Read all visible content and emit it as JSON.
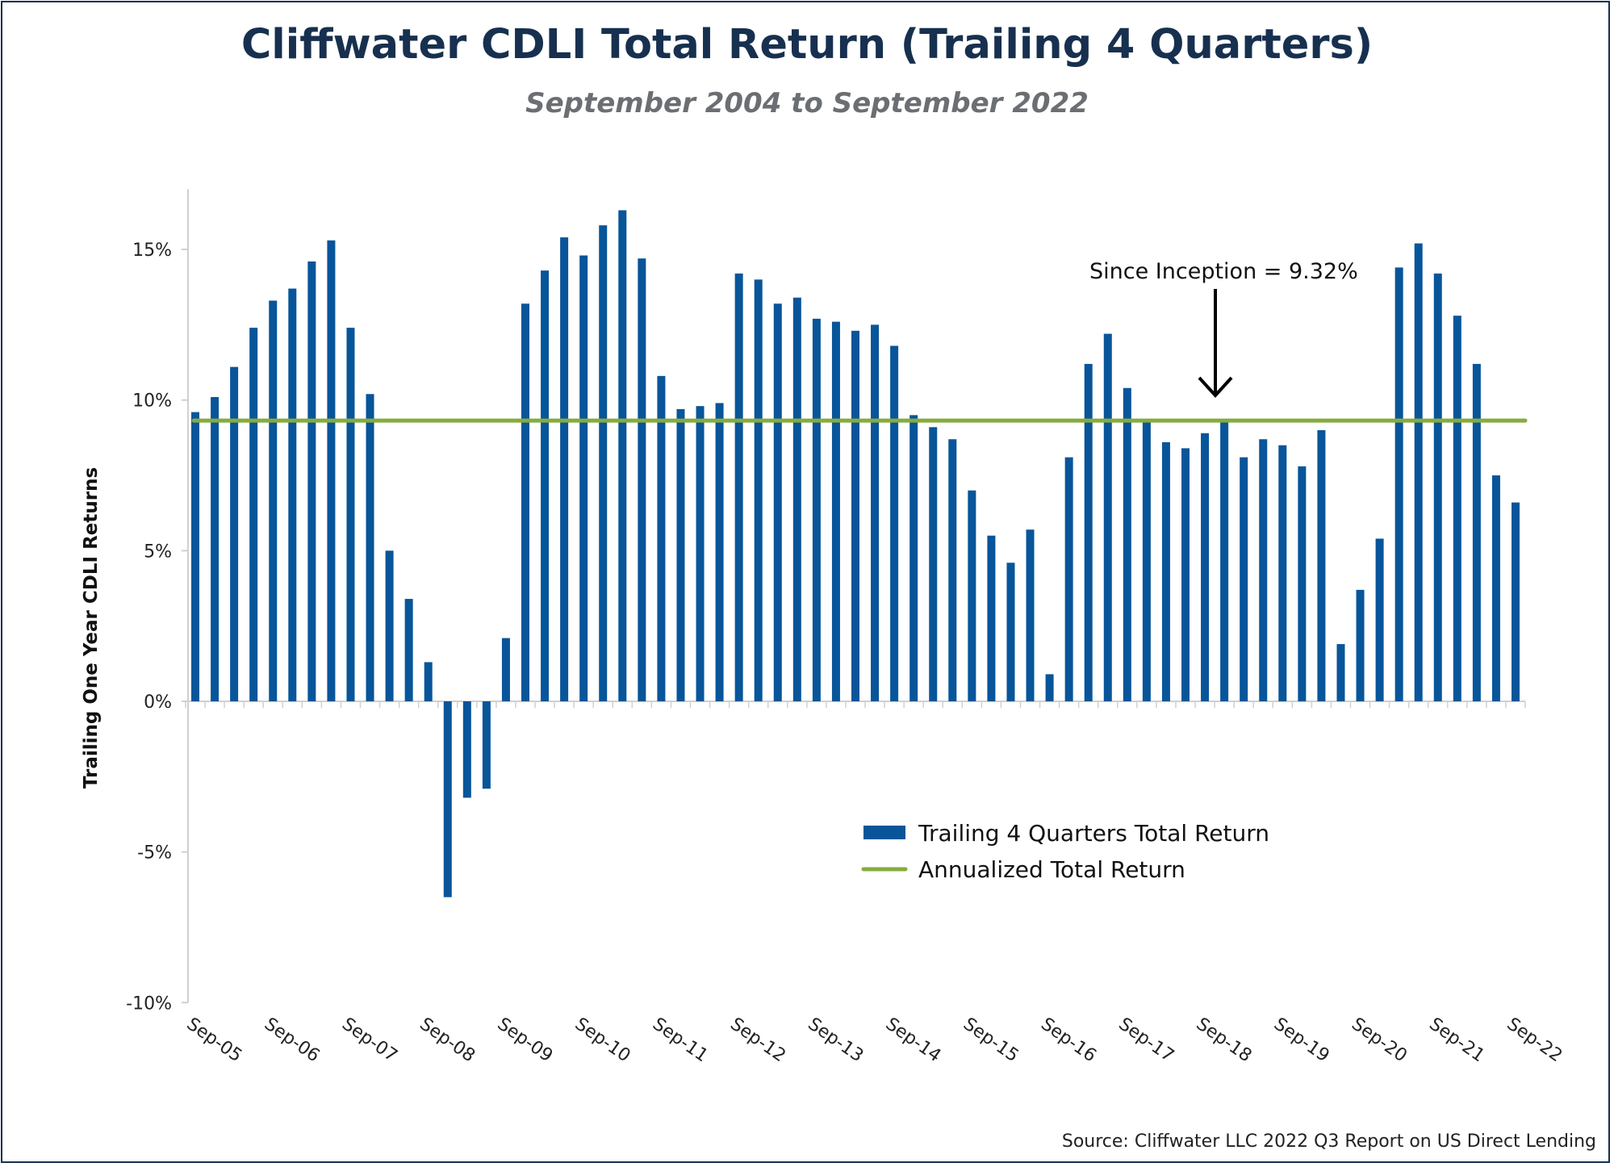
{
  "chart_data": {
    "type": "bar",
    "title": "Cliffwater CDLI Total Return (Trailing 4 Quarters)",
    "subtitle": "September 2004 to September 2022",
    "ylabel": "Trailing One Year CDLI Returns",
    "xlabel": "",
    "ylim": [
      -10,
      17
    ],
    "yticks": [
      "-10%",
      "-5%",
      "0%",
      "5%",
      "10%",
      "15%"
    ],
    "ytick_values": [
      -10,
      -5,
      0,
      5,
      10,
      15
    ],
    "xtick_labels": [
      "Sep-05",
      "Sep-06",
      "Sep-07",
      "Sep-08",
      "Sep-09",
      "Sep-10",
      "Sep-11",
      "Sep-12",
      "Sep-13",
      "Sep-14",
      "Sep-15",
      "Sep-16",
      "Sep-17",
      "Sep-18",
      "Sep-19",
      "Sep-20",
      "Sep-21",
      "Sep-22"
    ],
    "grid": false,
    "legend_position": "bottom-right",
    "series": [
      {
        "name": "Trailing 4 Quarters Total Return",
        "type": "bar",
        "color": "#08559a",
        "values": [
          9.6,
          10.1,
          11.1,
          12.4,
          13.3,
          13.7,
          14.6,
          15.3,
          12.4,
          10.2,
          5.0,
          3.4,
          1.3,
          -6.5,
          -3.2,
          -2.9,
          2.1,
          13.2,
          14.3,
          15.4,
          14.8,
          15.8,
          16.3,
          14.7,
          10.8,
          9.7,
          9.8,
          9.9,
          14.2,
          14.0,
          13.2,
          13.4,
          12.7,
          12.6,
          12.3,
          12.5,
          11.8,
          9.5,
          9.1,
          8.7,
          7.0,
          5.5,
          4.6,
          5.7,
          0.9,
          8.1,
          11.2,
          12.2,
          10.4,
          9.3,
          8.6,
          8.4,
          8.9,
          9.3,
          8.1,
          8.7,
          8.5,
          7.8,
          9.0,
          1.9,
          3.7,
          5.4,
          14.4,
          15.2,
          14.2,
          12.8,
          11.2,
          7.5,
          6.6
        ]
      },
      {
        "name": "Annualized Total Return",
        "type": "line",
        "color": "#86ab3f",
        "value": 9.32
      }
    ],
    "annotation": "Since Inception = 9.32%"
  },
  "source": "Source: Cliffwater LLC 2022 Q3 Report on US Direct Lending"
}
